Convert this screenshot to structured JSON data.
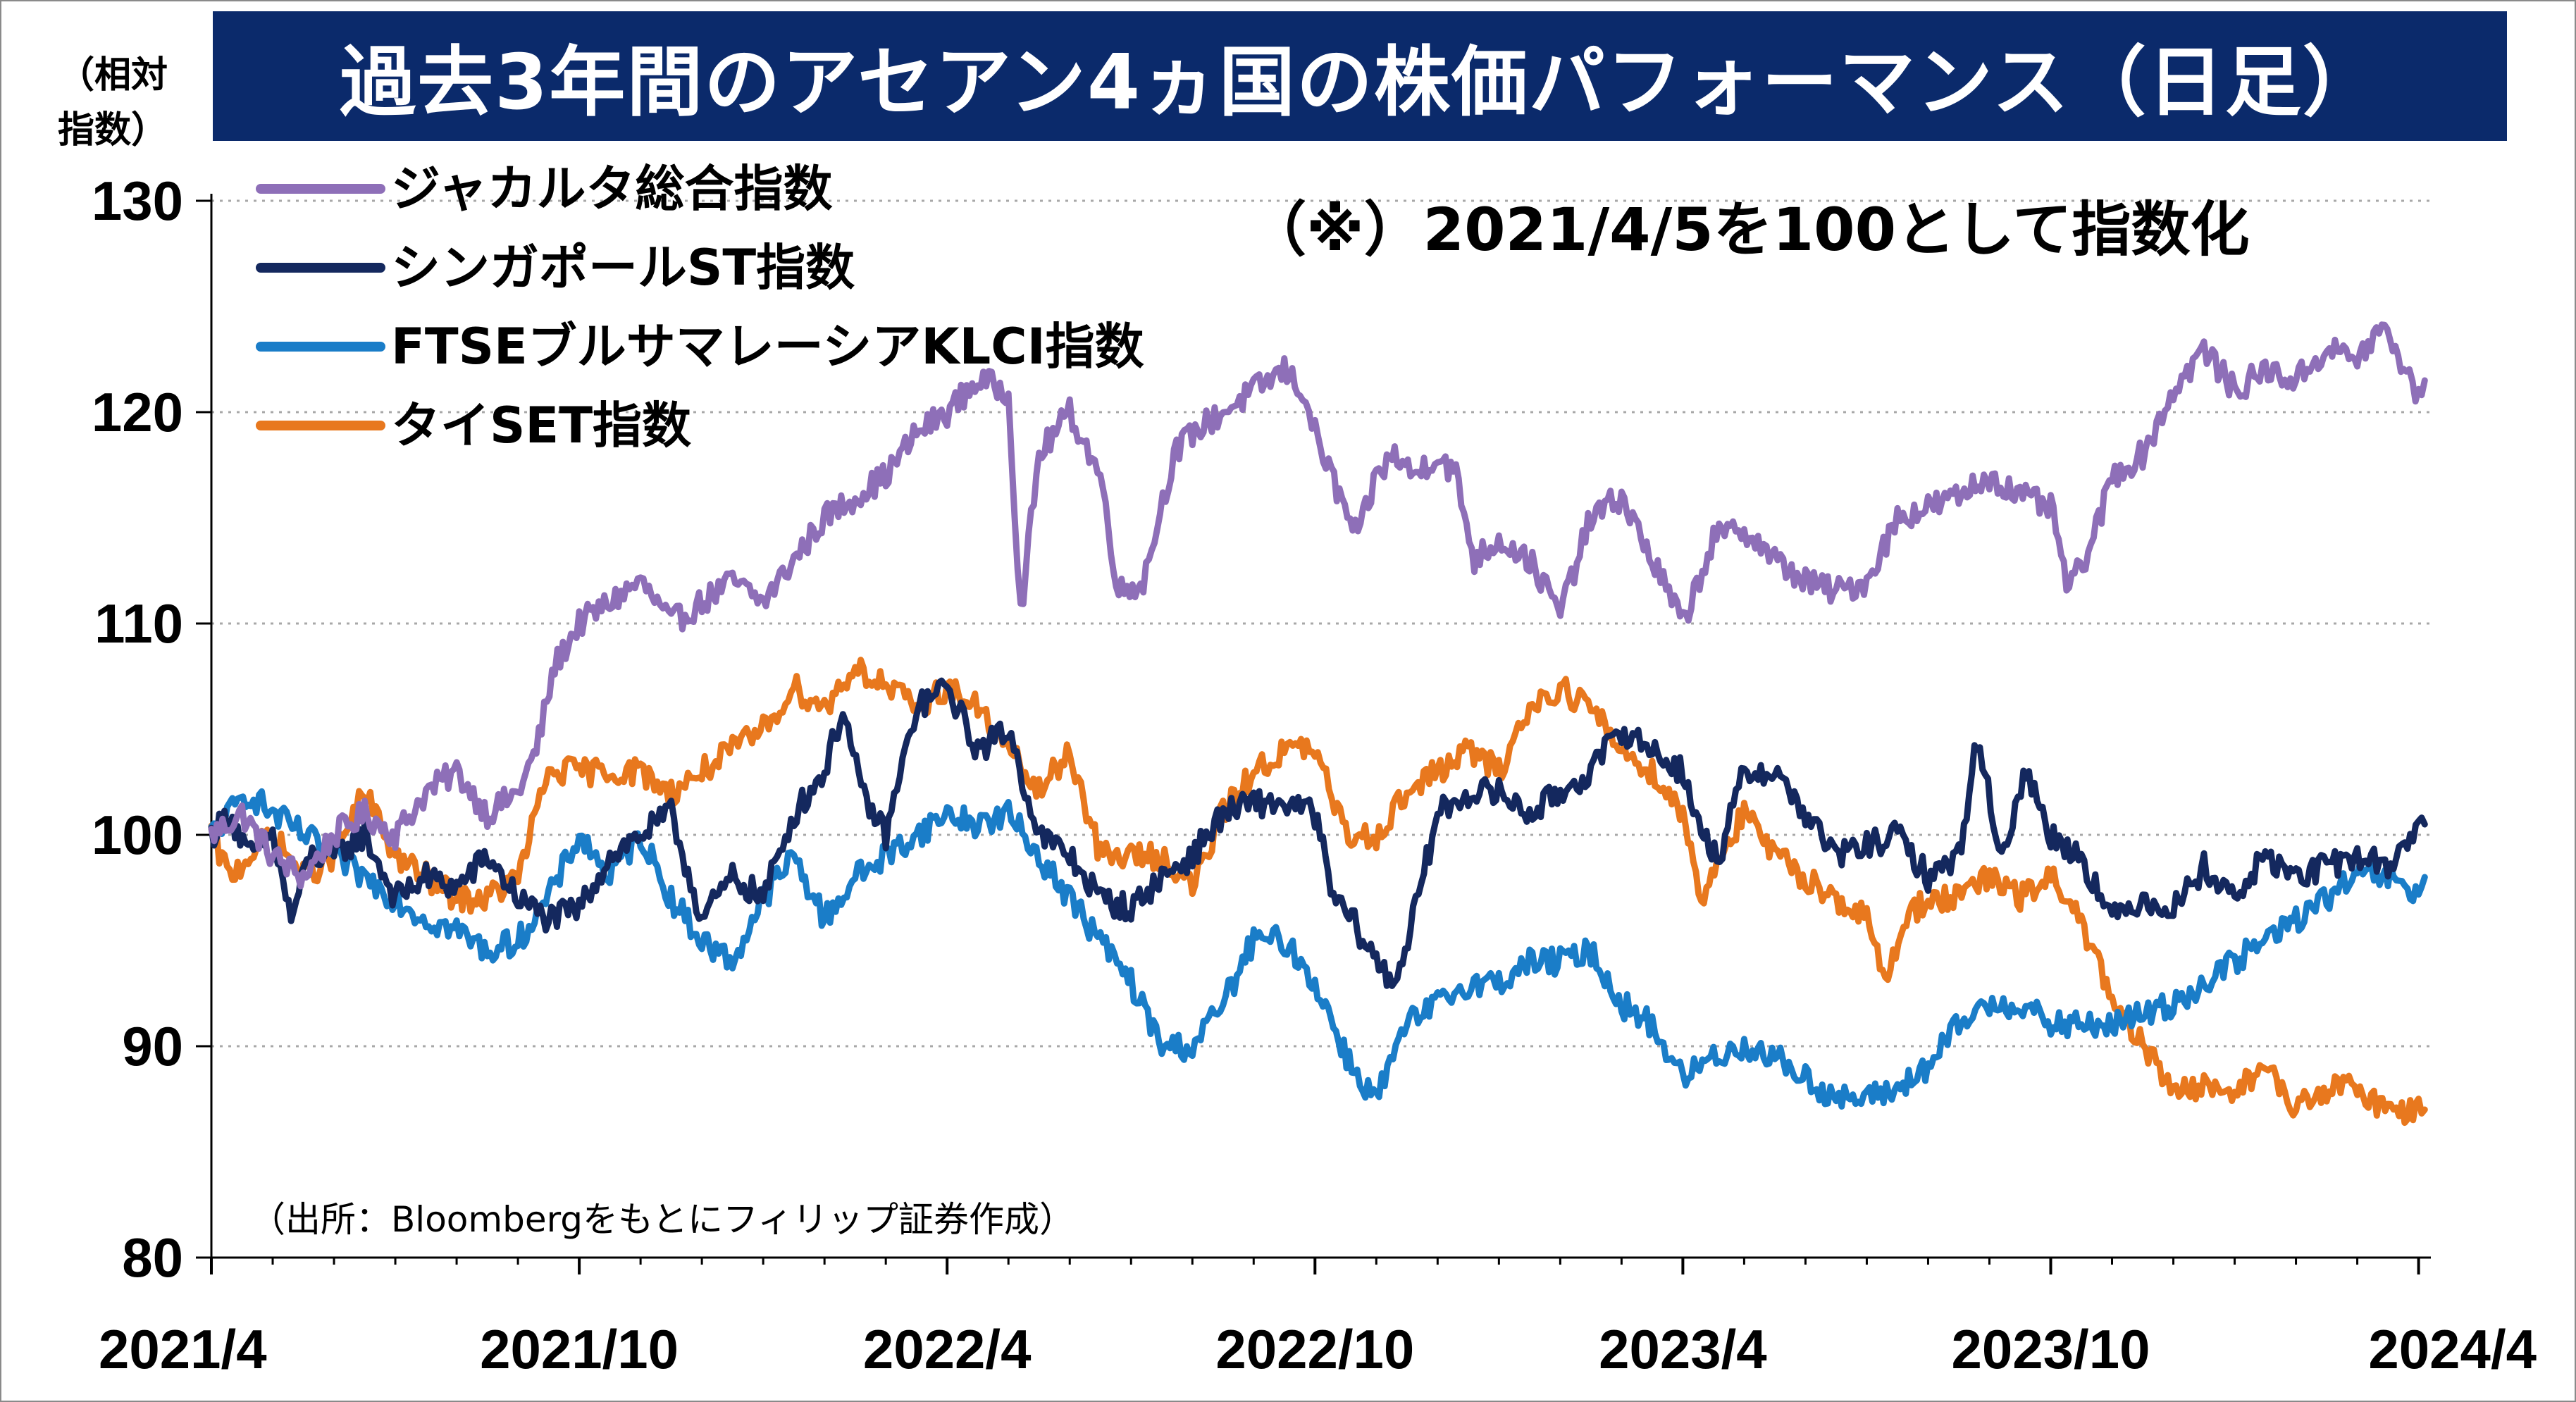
{
  "title": "過去3年間のアセアン4ヵ国の株価パフォーマンス（日足）",
  "y_unit_label": "（相対指数）",
  "note": "（※）2021/4/5を100として指数化",
  "source": "（出所：Bloombergをもとにフィリップ証券作成）",
  "chart_data": {
    "type": "line",
    "ylim": [
      80,
      130
    ],
    "yticks": [
      80,
      90,
      100,
      110,
      120,
      130
    ],
    "x_tick_labels": [
      "2021/4",
      "2021/10",
      "2022/4",
      "2022/10",
      "2023/4",
      "2023/10",
      "2024/4"
    ],
    "x_tick_months": [
      0,
      6,
      12,
      18,
      24,
      30,
      36
    ],
    "xlim_months": [
      0,
      36.2
    ],
    "grid": true,
    "legend_position": "top-left",
    "series": [
      {
        "name": "ジャカルタ総合指数",
        "color": "#8e6fb8",
        "points": [
          [
            0,
            100
          ],
          [
            0.5,
            101
          ],
          [
            1,
            99
          ],
          [
            1.5,
            98
          ],
          [
            2,
            100
          ],
          [
            2.5,
            101
          ],
          [
            3,
            100
          ],
          [
            3.5,
            102
          ],
          [
            4,
            103
          ],
          [
            4.5,
            101
          ],
          [
            5,
            102
          ],
          [
            5.3,
            104
          ],
          [
            5.6,
            108
          ],
          [
            6,
            110
          ],
          [
            6.5,
            111
          ],
          [
            7,
            112
          ],
          [
            7.5,
            110
          ],
          [
            8,
            111
          ],
          [
            8.5,
            112
          ],
          [
            9,
            111
          ],
          [
            9.5,
            113
          ],
          [
            10,
            115
          ],
          [
            10.5,
            116
          ],
          [
            11,
            117
          ],
          [
            11.5,
            119
          ],
          [
            12,
            120
          ],
          [
            12.5,
            121.5
          ],
          [
            13,
            121
          ],
          [
            13.2,
            110.5
          ],
          [
            13.5,
            118
          ],
          [
            14,
            120
          ],
          [
            14.5,
            117
          ],
          [
            14.8,
            111.5
          ],
          [
            15.2,
            112
          ],
          [
            15.7,
            118
          ],
          [
            16,
            119
          ],
          [
            16.5,
            120
          ],
          [
            17,
            121
          ],
          [
            17.5,
            122
          ],
          [
            17.8,
            121
          ],
          [
            18,
            119
          ],
          [
            18.4,
            116
          ],
          [
            18.7,
            114
          ],
          [
            19,
            117
          ],
          [
            19.3,
            118
          ],
          [
            19.6,
            117
          ],
          [
            20,
            118
          ],
          [
            20.3,
            117
          ],
          [
            20.6,
            113
          ],
          [
            21,
            114
          ],
          [
            21.5,
            113
          ],
          [
            22,
            110.5
          ],
          [
            22.5,
            115
          ],
          [
            23,
            116
          ],
          [
            23.5,
            113
          ],
          [
            24,
            110
          ],
          [
            24.5,
            114
          ],
          [
            25,
            114.5
          ],
          [
            25.5,
            113
          ],
          [
            26,
            112
          ],
          [
            26.5,
            111.5
          ],
          [
            27,
            112
          ],
          [
            27.5,
            115
          ],
          [
            28,
            115.5
          ],
          [
            28.5,
            116
          ],
          [
            29,
            117
          ],
          [
            29.5,
            116
          ],
          [
            30,
            115.5
          ],
          [
            30.3,
            111.5
          ],
          [
            30.7,
            114
          ],
          [
            31,
            117
          ],
          [
            31.5,
            118
          ],
          [
            32,
            121
          ],
          [
            32.5,
            123
          ],
          [
            33,
            121
          ],
          [
            33.5,
            122
          ],
          [
            34,
            121.5
          ],
          [
            34.5,
            123
          ],
          [
            35,
            122.5
          ],
          [
            35.4,
            124
          ],
          [
            35.8,
            122
          ],
          [
            36,
            120.5
          ],
          [
            36.1,
            121.5
          ]
        ]
      },
      {
        "name": "シンガポールST指数",
        "color": "#14285e",
        "points": [
          [
            0,
            100
          ],
          [
            0.3,
            101
          ],
          [
            0.6,
            99
          ],
          [
            1,
            100
          ],
          [
            1.3,
            96
          ],
          [
            1.6,
            99
          ],
          [
            2,
            99
          ],
          [
            2.5,
            100
          ],
          [
            3,
            97
          ],
          [
            3.5,
            98
          ],
          [
            4,
            97.5
          ],
          [
            4.5,
            99
          ],
          [
            5,
            97
          ],
          [
            5.5,
            96
          ],
          [
            6,
            96.5
          ],
          [
            6.5,
            99
          ],
          [
            7,
            100
          ],
          [
            7.5,
            101
          ],
          [
            8,
            96
          ],
          [
            8.5,
            98
          ],
          [
            9,
            97
          ],
          [
            9.5,
            101
          ],
          [
            10,
            103
          ],
          [
            10.3,
            106
          ],
          [
            10.6,
            102
          ],
          [
            11,
            100
          ],
          [
            11.5,
            106
          ],
          [
            12,
            107
          ],
          [
            12.5,
            104
          ],
          [
            13,
            105
          ],
          [
            13.5,
            100
          ],
          [
            14,
            99
          ],
          [
            14.5,
            97
          ],
          [
            15,
            96.5
          ],
          [
            15.5,
            98
          ],
          [
            16,
            99
          ],
          [
            16.5,
            101
          ],
          [
            17,
            101.5
          ],
          [
            17.5,
            101.5
          ],
          [
            18,
            101
          ],
          [
            18.3,
            97
          ],
          [
            18.6,
            96
          ],
          [
            19,
            94
          ],
          [
            19.3,
            93
          ],
          [
            19.6,
            96
          ],
          [
            20,
            101
          ],
          [
            20.5,
            102
          ],
          [
            21,
            102
          ],
          [
            21.5,
            101
          ],
          [
            22,
            102
          ],
          [
            22.5,
            103
          ],
          [
            23,
            105
          ],
          [
            23.5,
            104
          ],
          [
            24,
            103
          ],
          [
            24.3,
            100
          ],
          [
            24.6,
            99
          ],
          [
            25,
            103
          ],
          [
            25.5,
            103
          ],
          [
            26,
            101
          ],
          [
            26.5,
            99
          ],
          [
            27,
            99.5
          ],
          [
            27.5,
            100
          ],
          [
            28,
            98
          ],
          [
            28.5,
            99
          ],
          [
            28.8,
            104.5
          ],
          [
            29.2,
            99
          ],
          [
            29.6,
            103
          ],
          [
            30,
            100
          ],
          [
            30.5,
            99
          ],
          [
            31,
            96
          ],
          [
            31.5,
            97
          ],
          [
            32,
            96.5
          ],
          [
            32.5,
            98.5
          ],
          [
            33,
            97
          ],
          [
            33.5,
            99
          ],
          [
            34,
            98
          ],
          [
            34.5,
            98.5
          ],
          [
            35,
            99
          ],
          [
            35.5,
            98.5
          ],
          [
            36,
            100.5
          ],
          [
            36.1,
            100.5
          ]
        ]
      },
      {
        "name": "FTSEブルサマレーシアKLCI指数",
        "color": "#1a7dc8",
        "points": [
          [
            0,
            100
          ],
          [
            0.3,
            101
          ],
          [
            0.6,
            102
          ],
          [
            1,
            101
          ],
          [
            1.5,
            100
          ],
          [
            2,
            99
          ],
          [
            2.5,
            98
          ],
          [
            3,
            97
          ],
          [
            3.5,
            96
          ],
          [
            4,
            95.5
          ],
          [
            4.5,
            94.5
          ],
          [
            5,
            95
          ],
          [
            5.5,
            97
          ],
          [
            6,
            100
          ],
          [
            6.5,
            98
          ],
          [
            7,
            100
          ],
          [
            7.5,
            97
          ],
          [
            8,
            95
          ],
          [
            8.5,
            94
          ],
          [
            9,
            97
          ],
          [
            9.5,
            99
          ],
          [
            10,
            96
          ],
          [
            10.5,
            98
          ],
          [
            11,
            99
          ],
          [
            11.5,
            100
          ],
          [
            12,
            101
          ],
          [
            12.5,
            100.5
          ],
          [
            13,
            101
          ],
          [
            13.5,
            99
          ],
          [
            14,
            97
          ],
          [
            14.5,
            95
          ],
          [
            15,
            93
          ],
          [
            15.5,
            90
          ],
          [
            16,
            90
          ],
          [
            16.5,
            92
          ],
          [
            17,
            95
          ],
          [
            17.5,
            95
          ],
          [
            18,
            93
          ],
          [
            18.3,
            91
          ],
          [
            18.6,
            89
          ],
          [
            19,
            87.5
          ],
          [
            19.5,
            91
          ],
          [
            20,
            92
          ],
          [
            20.5,
            93
          ],
          [
            21,
            93
          ],
          [
            21.5,
            94
          ],
          [
            22,
            94
          ],
          [
            22.5,
            94.5
          ],
          [
            23,
            92
          ],
          [
            23.5,
            91
          ],
          [
            24,
            88.5
          ],
          [
            24.5,
            89.5
          ],
          [
            25,
            90
          ],
          [
            25.5,
            89.5
          ],
          [
            26,
            88.5
          ],
          [
            26.5,
            87.5
          ],
          [
            27,
            87.5
          ],
          [
            27.5,
            88
          ],
          [
            28,
            89
          ],
          [
            28.5,
            91
          ],
          [
            29,
            92
          ],
          [
            29.5,
            92
          ],
          [
            30,
            91
          ],
          [
            30.5,
            91
          ],
          [
            31,
            91
          ],
          [
            31.5,
            91.5
          ],
          [
            32,
            92
          ],
          [
            32.5,
            93
          ],
          [
            33,
            94
          ],
          [
            33.5,
            95
          ],
          [
            34,
            96
          ],
          [
            34.5,
            97
          ],
          [
            35,
            98
          ],
          [
            35.5,
            98
          ],
          [
            36,
            97
          ],
          [
            36.1,
            98
          ]
        ]
      },
      {
        "name": "タイSET指数",
        "color": "#e8781e",
        "points": [
          [
            0,
            100
          ],
          [
            0.3,
            98
          ],
          [
            0.6,
            99
          ],
          [
            1,
            100
          ],
          [
            1.5,
            98
          ],
          [
            2,
            99
          ],
          [
            2.5,
            102
          ],
          [
            3,
            99
          ],
          [
            3.5,
            98
          ],
          [
            4,
            97
          ],
          [
            4.5,
            97
          ],
          [
            5,
            98
          ],
          [
            5.5,
            103
          ],
          [
            6,
            103
          ],
          [
            6.5,
            103
          ],
          [
            7,
            103
          ],
          [
            7.5,
            102
          ],
          [
            8,
            103
          ],
          [
            8.5,
            104
          ],
          [
            9,
            105
          ],
          [
            9.5,
            107
          ],
          [
            10,
            106
          ],
          [
            10.5,
            108
          ],
          [
            11,
            107
          ],
          [
            11.5,
            106
          ],
          [
            12,
            107
          ],
          [
            12.5,
            106
          ],
          [
            13,
            104
          ],
          [
            13.5,
            102
          ],
          [
            14,
            104
          ],
          [
            14.5,
            99
          ],
          [
            15,
            99
          ],
          [
            15.5,
            99
          ],
          [
            16,
            97.5
          ],
          [
            16.5,
            101
          ],
          [
            17,
            103
          ],
          [
            17.5,
            104
          ],
          [
            18,
            104
          ],
          [
            18.5,
            100
          ],
          [
            19,
            100
          ],
          [
            19.5,
            102
          ],
          [
            20,
            103
          ],
          [
            20.5,
            104
          ],
          [
            21,
            103
          ],
          [
            21.5,
            106
          ],
          [
            22,
            107
          ],
          [
            22.5,
            106
          ],
          [
            23,
            104
          ],
          [
            23.5,
            103
          ],
          [
            24,
            101
          ],
          [
            24.3,
            97
          ],
          [
            24.6,
            99
          ],
          [
            25,
            101
          ],
          [
            25.5,
            99
          ],
          [
            26,
            98
          ],
          [
            26.5,
            97
          ],
          [
            27,
            96
          ],
          [
            27.3,
            93
          ],
          [
            27.6,
            96
          ],
          [
            28,
            97
          ],
          [
            28.5,
            97
          ],
          [
            29,
            98
          ],
          [
            29.5,
            97
          ],
          [
            30,
            98
          ],
          [
            30.5,
            96
          ],
          [
            31,
            92
          ],
          [
            31.5,
            90
          ],
          [
            32,
            88
          ],
          [
            32.5,
            88
          ],
          [
            33,
            88
          ],
          [
            33.5,
            89
          ],
          [
            34,
            87
          ],
          [
            34.5,
            88
          ],
          [
            35,
            88
          ],
          [
            35.5,
            87
          ],
          [
            36,
            87
          ],
          [
            36.1,
            87
          ]
        ]
      }
    ]
  }
}
